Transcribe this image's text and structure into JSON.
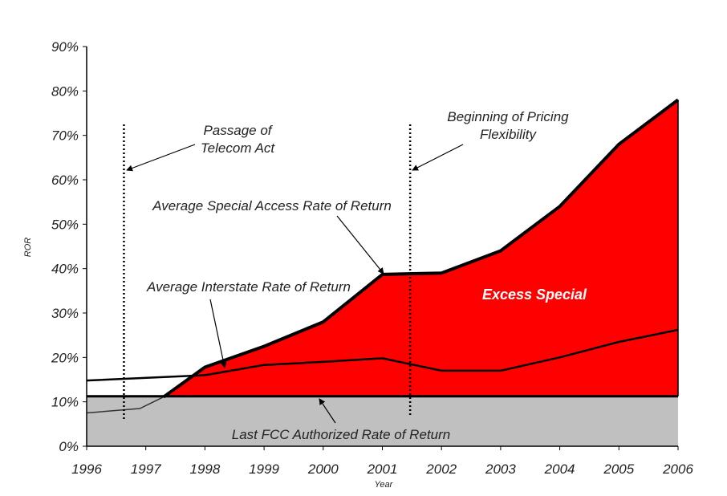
{
  "chart_data": {
    "type": "area",
    "xlabel": "Year",
    "ylabel": "ROR",
    "x": [
      1996,
      1997,
      1998,
      1999,
      2000,
      2001,
      2002,
      2003,
      2004,
      2005,
      2006
    ],
    "x_ticks": [
      "1996",
      "1997",
      "1998",
      "1999",
      "2000",
      "2001",
      "2002",
      "2003",
      "2004",
      "2005",
      "2006"
    ],
    "y_ticks": [
      "0%",
      "10%",
      "20%",
      "30%",
      "40%",
      "50%",
      "60%",
      "70%",
      "80%",
      "90%"
    ],
    "ylim": [
      0,
      90
    ],
    "xlim": [
      1996,
      2006
    ],
    "grid": false,
    "series": [
      {
        "name": "Average Special Access Rate of Return",
        "x": [
          1996,
          1996.9,
          1997.3,
          1998,
          1999,
          2000,
          2001,
          2002,
          2003,
          2004,
          2005,
          2006
        ],
        "y": [
          7.5,
          8.5,
          11.1,
          17.8,
          22.5,
          28,
          38.7,
          39,
          44,
          54,
          68,
          78
        ]
      },
      {
        "name": "Average Interstate Rate of Return",
        "x": [
          1996,
          1998,
          1999,
          2000,
          2001,
          2002,
          2003,
          2004,
          2005,
          2006
        ],
        "y": [
          14.8,
          16,
          18.3,
          19,
          19.8,
          17,
          17,
          20,
          23.5,
          26.2
        ]
      },
      {
        "name": "Last FCC Authorized Rate of Return",
        "x": [
          1996,
          2006
        ],
        "y": [
          11.25,
          11.25
        ]
      }
    ],
    "colors": {
      "excess_fill": "#ff0000",
      "authorized_fill": "#c0c0c0",
      "line": "#000000"
    },
    "annotations": [
      {
        "id": "telecom",
        "text": [
          "Passage of",
          "Telecom Act"
        ],
        "x_marker": 1996.63
      },
      {
        "id": "pricing",
        "text": [
          "Beginning of Pricing",
          "Flexibility"
        ],
        "x_marker": 2001.47
      },
      {
        "id": "special",
        "text": [
          "Average Special Access Rate of Return"
        ]
      },
      {
        "id": "interstate",
        "text": [
          "Average Interstate Rate of Return"
        ]
      },
      {
        "id": "fcc",
        "text": [
          "Last FCC Authorized Rate of Return"
        ]
      },
      {
        "id": "excess",
        "text": [
          "Excess Special"
        ]
      }
    ]
  }
}
